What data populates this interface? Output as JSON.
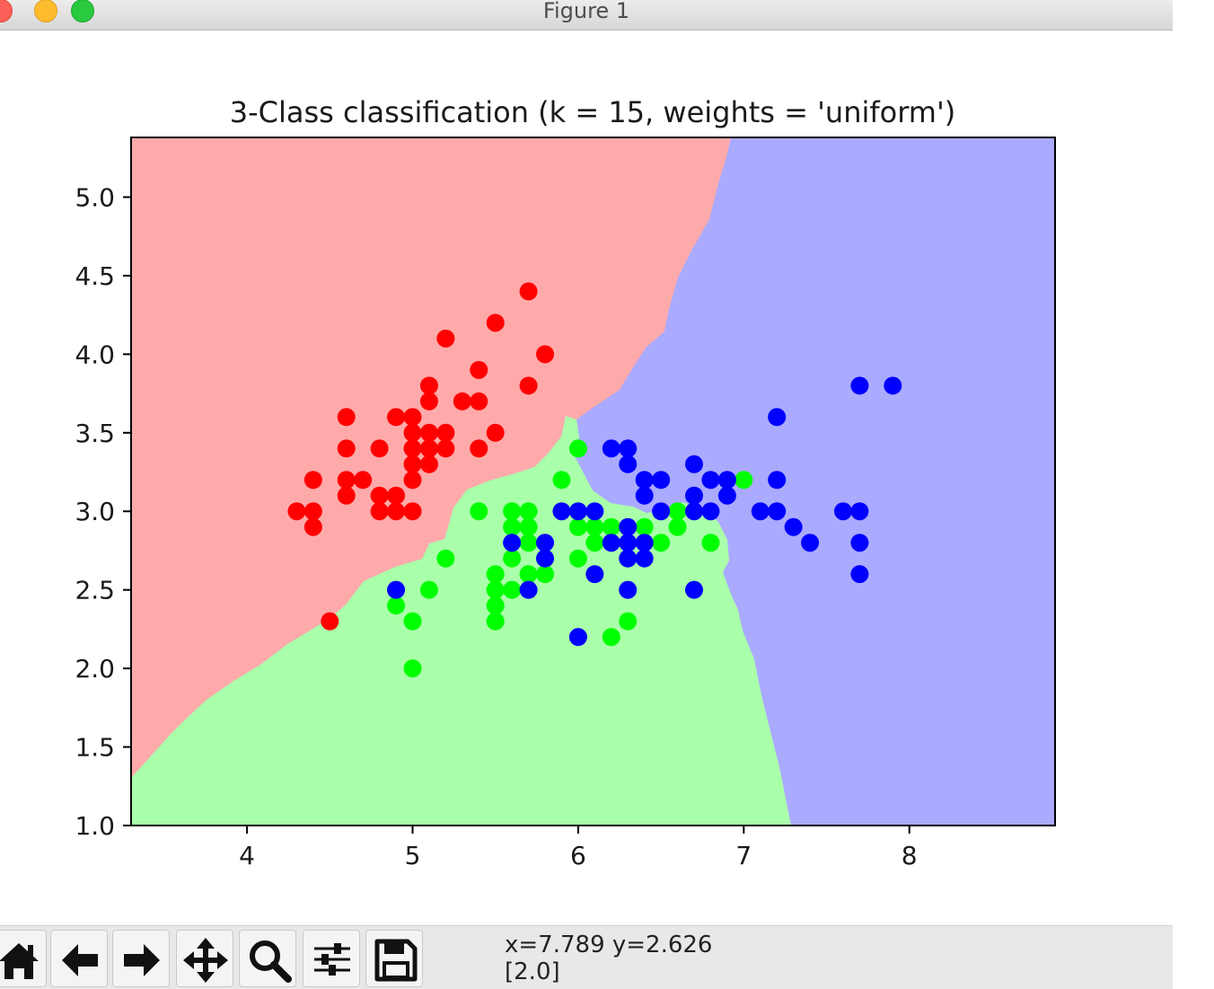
{
  "window": {
    "title": "Figure 1"
  },
  "chart_data": {
    "type": "scatter",
    "title": "3-Class classification (k = 15, weights = 'uniform')",
    "xlabel": "",
    "ylabel": "",
    "xlim": [
      3.3,
      8.88
    ],
    "ylim": [
      1.0,
      5.38
    ],
    "xticks": [
      "4",
      "5",
      "6",
      "7",
      "8"
    ],
    "yticks": [
      "1.0",
      "1.5",
      "2.0",
      "2.5",
      "3.0",
      "3.5",
      "4.0",
      "4.5",
      "5.0"
    ],
    "region_colors": {
      "red": "#ffaaaa",
      "green": "#aaffaa",
      "blue": "#aaaaff"
    },
    "series": [
      {
        "color": "#ff0000",
        "points": [
          [
            4.3,
            3.0
          ],
          [
            4.4,
            3.0
          ],
          [
            4.4,
            2.9
          ],
          [
            4.4,
            3.2
          ],
          [
            4.5,
            2.3
          ],
          [
            4.6,
            3.1
          ],
          [
            4.6,
            3.2
          ],
          [
            4.6,
            3.4
          ],
          [
            4.6,
            3.6
          ],
          [
            4.7,
            3.2
          ],
          [
            4.8,
            3.0
          ],
          [
            4.8,
            3.1
          ],
          [
            4.8,
            3.4
          ],
          [
            4.9,
            3.0
          ],
          [
            4.9,
            3.1
          ],
          [
            4.9,
            3.6
          ],
          [
            5.0,
            3.0
          ],
          [
            5.0,
            3.2
          ],
          [
            5.0,
            3.3
          ],
          [
            5.0,
            3.4
          ],
          [
            5.0,
            3.5
          ],
          [
            5.0,
            3.6
          ],
          [
            5.1,
            3.3
          ],
          [
            5.1,
            3.4
          ],
          [
            5.1,
            3.5
          ],
          [
            5.1,
            3.7
          ],
          [
            5.1,
            3.8
          ],
          [
            5.2,
            3.4
          ],
          [
            5.2,
            3.5
          ],
          [
            5.2,
            4.1
          ],
          [
            5.3,
            3.7
          ],
          [
            5.4,
            3.4
          ],
          [
            5.4,
            3.7
          ],
          [
            5.4,
            3.9
          ],
          [
            5.5,
            3.5
          ],
          [
            5.5,
            4.2
          ],
          [
            5.7,
            3.8
          ],
          [
            5.7,
            4.4
          ],
          [
            5.8,
            4.0
          ]
        ]
      },
      {
        "color": "#00ff00",
        "points": [
          [
            4.9,
            2.4
          ],
          [
            5.0,
            2.0
          ],
          [
            5.0,
            2.3
          ],
          [
            5.1,
            2.5
          ],
          [
            5.2,
            2.7
          ],
          [
            5.4,
            3.0
          ],
          [
            5.5,
            2.3
          ],
          [
            5.5,
            2.4
          ],
          [
            5.5,
            2.5
          ],
          [
            5.5,
            2.6
          ],
          [
            5.6,
            2.5
          ],
          [
            5.6,
            2.7
          ],
          [
            5.6,
            2.9
          ],
          [
            5.6,
            3.0
          ],
          [
            5.7,
            2.6
          ],
          [
            5.7,
            2.8
          ],
          [
            5.7,
            2.9
          ],
          [
            5.7,
            3.0
          ],
          [
            5.8,
            2.6
          ],
          [
            5.8,
            2.7
          ],
          [
            5.9,
            3.2
          ],
          [
            6.0,
            2.7
          ],
          [
            6.0,
            2.9
          ],
          [
            6.0,
            3.4
          ],
          [
            6.1,
            2.8
          ],
          [
            6.1,
            2.9
          ],
          [
            6.2,
            2.2
          ],
          [
            6.2,
            2.9
          ],
          [
            6.3,
            2.3
          ],
          [
            6.4,
            2.9
          ],
          [
            6.5,
            2.8
          ],
          [
            6.6,
            2.9
          ],
          [
            6.6,
            3.0
          ],
          [
            6.8,
            2.8
          ],
          [
            7.0,
            3.2
          ]
        ]
      },
      {
        "color": "#0000ff",
        "points": [
          [
            4.9,
            2.5
          ],
          [
            5.6,
            2.8
          ],
          [
            5.7,
            2.5
          ],
          [
            5.8,
            2.7
          ],
          [
            5.8,
            2.8
          ],
          [
            5.9,
            3.0
          ],
          [
            6.0,
            2.2
          ],
          [
            6.0,
            3.0
          ],
          [
            6.1,
            2.6
          ],
          [
            6.1,
            3.0
          ],
          [
            6.2,
            2.8
          ],
          [
            6.2,
            3.4
          ],
          [
            6.3,
            2.5
          ],
          [
            6.3,
            2.7
          ],
          [
            6.3,
            2.8
          ],
          [
            6.3,
            2.9
          ],
          [
            6.3,
            3.3
          ],
          [
            6.3,
            3.4
          ],
          [
            6.4,
            2.7
          ],
          [
            6.4,
            2.8
          ],
          [
            6.4,
            3.1
          ],
          [
            6.4,
            3.2
          ],
          [
            6.5,
            3.0
          ],
          [
            6.5,
            3.2
          ],
          [
            6.7,
            2.5
          ],
          [
            6.7,
            3.0
          ],
          [
            6.7,
            3.1
          ],
          [
            6.7,
            3.3
          ],
          [
            6.8,
            3.0
          ],
          [
            6.8,
            3.2
          ],
          [
            6.9,
            3.1
          ],
          [
            6.9,
            3.2
          ],
          [
            7.1,
            3.0
          ],
          [
            7.2,
            3.0
          ],
          [
            7.2,
            3.2
          ],
          [
            7.2,
            3.6
          ],
          [
            7.3,
            2.9
          ],
          [
            7.4,
            2.8
          ],
          [
            7.6,
            3.0
          ],
          [
            7.7,
            2.6
          ],
          [
            7.7,
            2.8
          ],
          [
            7.7,
            3.0
          ],
          [
            7.7,
            3.8
          ],
          [
            7.9,
            3.8
          ]
        ]
      }
    ]
  },
  "toolbar": {
    "buttons": [
      {
        "name": "home-button",
        "icon": "home-icon"
      },
      {
        "name": "back-button",
        "icon": "left-arrow-icon"
      },
      {
        "name": "forward-button",
        "icon": "right-arrow-icon"
      },
      {
        "name": "pan-button",
        "icon": "move-icon"
      },
      {
        "name": "zoom-button",
        "icon": "magnifier-icon"
      },
      {
        "name": "configure-subplots-button",
        "icon": "sliders-icon"
      },
      {
        "name": "save-button",
        "icon": "floppy-disk-icon"
      }
    ],
    "coords": "x=7.789 y=2.626",
    "value": "[2.0]"
  }
}
